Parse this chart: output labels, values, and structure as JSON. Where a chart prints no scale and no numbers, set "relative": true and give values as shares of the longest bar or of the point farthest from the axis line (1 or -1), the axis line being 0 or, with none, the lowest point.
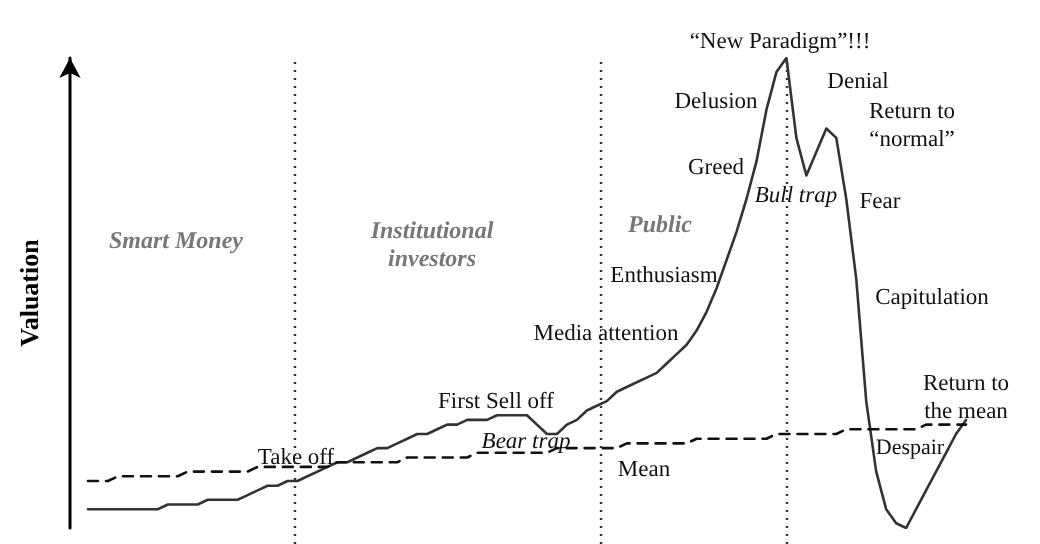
{
  "chart_data": {
    "type": "line",
    "relative": true,
    "ylabel": "Valuation",
    "grid": false,
    "categories": [
      null,
      null,
      null,
      null,
      null,
      null,
      null,
      null,
      null,
      null,
      null,
      null,
      null,
      null,
      null,
      null,
      null,
      null,
      null,
      null,
      null,
      null,
      null,
      null,
      null,
      null,
      null,
      null,
      null,
      null,
      null,
      null,
      null,
      null,
      null,
      null,
      null,
      null,
      null,
      null,
      null,
      null,
      null,
      null,
      null,
      null,
      null,
      null,
      null,
      null,
      null,
      null,
      null,
      null,
      null,
      null,
      null,
      null,
      null,
      null,
      null,
      null,
      null,
      null,
      null,
      null,
      null,
      null,
      null,
      null,
      null,
      null,
      null,
      null,
      null,
      null,
      null,
      null,
      null,
      null,
      null,
      null,
      null,
      null,
      null,
      null,
      null,
      null,
      null
    ],
    "series": [
      {
        "color": "#333333",
        "line_style": "solid",
        "values": [
          0.04,
          0.04,
          0.04,
          0.04,
          0.04,
          0.04,
          0.04,
          0.04,
          0.05,
          0.05,
          0.05,
          0.05,
          0.06,
          0.06,
          0.06,
          0.06,
          0.07,
          0.08,
          0.09,
          0.09,
          0.1,
          0.1,
          0.11,
          0.12,
          0.13,
          0.14,
          0.14,
          0.15,
          0.16,
          0.17,
          0.17,
          0.18,
          0.19,
          0.2,
          0.2,
          0.21,
          0.22,
          0.22,
          0.23,
          0.23,
          0.23,
          0.24,
          0.24,
          0.24,
          0.24,
          0.22,
          0.2,
          0.2,
          0.22,
          0.23,
          0.25,
          0.26,
          0.27,
          0.29,
          0.3,
          0.31,
          0.32,
          0.33,
          0.35,
          0.37,
          0.39,
          0.42,
          0.46,
          0.51,
          0.57,
          0.63,
          0.7,
          0.78,
          0.89,
          0.97,
          1.0,
          0.83,
          0.75,
          0.8,
          0.85,
          0.83,
          0.7,
          0.53,
          0.27,
          0.12,
          0.04,
          0.01,
          0,
          0.04,
          0.08,
          0.12,
          0.16,
          0.2,
          0.23
        ]
      },
      {
        "color": "#111111",
        "line_style": "dashed",
        "values": [
          0.1,
          0.1,
          0.1,
          0.11,
          0.11,
          0.11,
          0.11,
          0.11,
          0.11,
          0.11,
          0.12,
          0.12,
          0.12,
          0.12,
          0.12,
          0.12,
          0.12,
          0.13,
          0.13,
          0.13,
          0.13,
          0.13,
          0.13,
          0.13,
          0.13,
          0.14,
          0.14,
          0.14,
          0.14,
          0.14,
          0.14,
          0.14,
          0.15,
          0.15,
          0.15,
          0.15,
          0.15,
          0.15,
          0.15,
          0.16,
          0.16,
          0.16,
          0.16,
          0.16,
          0.16,
          0.16,
          0.16,
          0.17,
          0.17,
          0.17,
          0.17,
          0.17,
          0.17,
          0.17,
          0.18,
          0.18,
          0.18,
          0.18,
          0.18,
          0.18,
          0.18,
          0.19,
          0.19,
          0.19,
          0.19,
          0.19,
          0.19,
          0.19,
          0.19,
          0.2,
          0.2,
          0.2,
          0.2,
          0.2,
          0.2,
          0.2,
          0.21,
          0.21,
          0.21,
          0.21,
          0.21,
          0.21,
          0.21,
          0.21,
          0.22,
          0.22,
          0.22,
          0.22,
          0.22
        ]
      }
    ],
    "annotations": [
      "Smart Money",
      "Institutional\ninvestors",
      "Public",
      "Take off",
      "First Sell off",
      "Bear trap",
      "Media attention",
      "Enthusiasm",
      "Greed",
      "Delusion",
      "“New Paradigm”!!!",
      "Denial",
      "Bull trap",
      "Return to\n“normal”",
      "Fear",
      "Capitulation",
      "Despair",
      "Return to\nthe mean",
      "Mean"
    ]
  }
}
